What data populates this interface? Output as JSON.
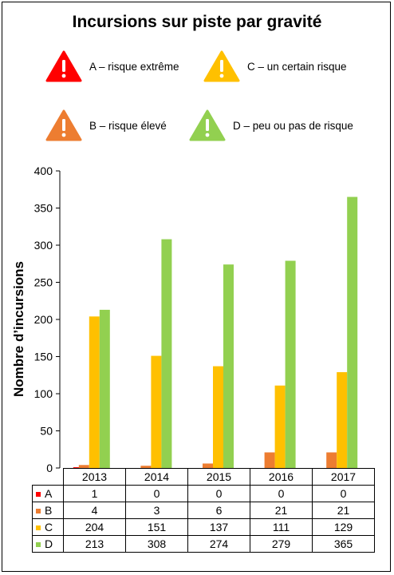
{
  "title": "Incursions sur piste par gravité",
  "legend": [
    {
      "key": "A",
      "label": "A – risque extrême",
      "color": "#ff0000"
    },
    {
      "key": "B",
      "label": "B – risque élevé",
      "color": "#ed7d31"
    },
    {
      "key": "C",
      "label": "C – un certain risque",
      "color": "#ffc000"
    },
    {
      "key": "D",
      "label": "D – peu ou pas de risque",
      "color": "#92d050"
    }
  ],
  "chart_data": {
    "type": "bar",
    "categories": [
      "2013",
      "2014",
      "2015",
      "2016",
      "2017"
    ],
    "series": [
      {
        "name": "A",
        "values": [
          1,
          0,
          0,
          0,
          0
        ],
        "color": "#ff0000"
      },
      {
        "name": "B",
        "values": [
          4,
          3,
          6,
          21,
          21
        ],
        "color": "#ed7d31"
      },
      {
        "name": "C",
        "values": [
          204,
          151,
          137,
          111,
          129
        ],
        "color": "#ffc000"
      },
      {
        "name": "D",
        "values": [
          213,
          308,
          274,
          279,
          365
        ],
        "color": "#92d050"
      }
    ],
    "ylabel": "Nombre d’incursions",
    "ylim": [
      0,
      400
    ],
    "yticks": [
      0,
      50,
      100,
      150,
      200,
      250,
      300,
      350,
      400
    ],
    "grid": false,
    "legend_placement": "top"
  }
}
